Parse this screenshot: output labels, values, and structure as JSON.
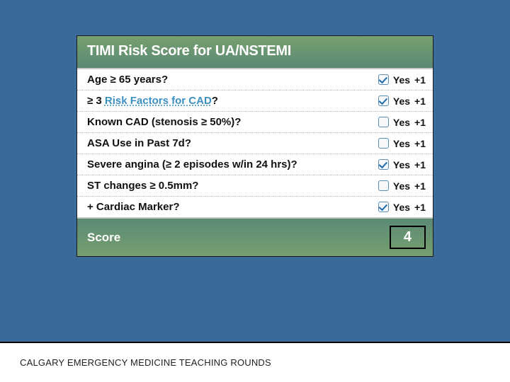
{
  "slide": {
    "background_color": "#3a6a99",
    "card_border_color": "#1a1a1a",
    "header_bg_gradient": [
      "#779f6f",
      "#5a8a74"
    ],
    "score_bg_gradient": [
      "#5a8a74",
      "#779f6f"
    ]
  },
  "header": {
    "title": "TIMI Risk Score for UA/NSTEMI",
    "title_color": "#ffffff",
    "title_fontsize": 20
  },
  "rows": [
    {
      "label_pre": "Age ≥ 65 years?",
      "link": "",
      "label_post": "",
      "checked": true,
      "yes": "Yes",
      "plus": "+1"
    },
    {
      "label_pre": "≥ 3 ",
      "link": "Risk Factors for CAD",
      "label_post": "?",
      "checked": true,
      "yes": "Yes",
      "plus": "+1"
    },
    {
      "label_pre": "Known CAD (stenosis ≥ 50%)?",
      "link": "",
      "label_post": "",
      "checked": false,
      "yes": "Yes",
      "plus": "+1"
    },
    {
      "label_pre": "ASA Use in Past 7d?",
      "link": "",
      "label_post": "",
      "checked": false,
      "yes": "Yes",
      "plus": "+1"
    },
    {
      "label_pre": "Severe angina (≥ 2 episodes w/in 24 hrs)?",
      "link": "",
      "label_post": "",
      "checked": true,
      "yes": "Yes",
      "plus": "+1"
    },
    {
      "label_pre": "ST changes ≥ 0.5mm?",
      "link": "",
      "label_post": "",
      "checked": false,
      "yes": "Yes",
      "plus": "+1"
    },
    {
      "label_pre": "+ Cardiac Marker?",
      "link": "",
      "label_post": "",
      "checked": true,
      "yes": "Yes",
      "plus": "+1"
    }
  ],
  "score": {
    "label": "Score",
    "value": "4",
    "box_border_color": "#000000"
  },
  "footer": {
    "text": "CALGARY EMERGENCY MEDICINE TEACHING ROUNDS"
  },
  "styling": {
    "row_divider_color": "#bbbbbb",
    "checkbox_border": "#5a8bb0",
    "checkbox_check_color": "#1e6db0",
    "link_color": "#3b8fc2",
    "label_color": "#111111",
    "label_fontsize": 15
  }
}
